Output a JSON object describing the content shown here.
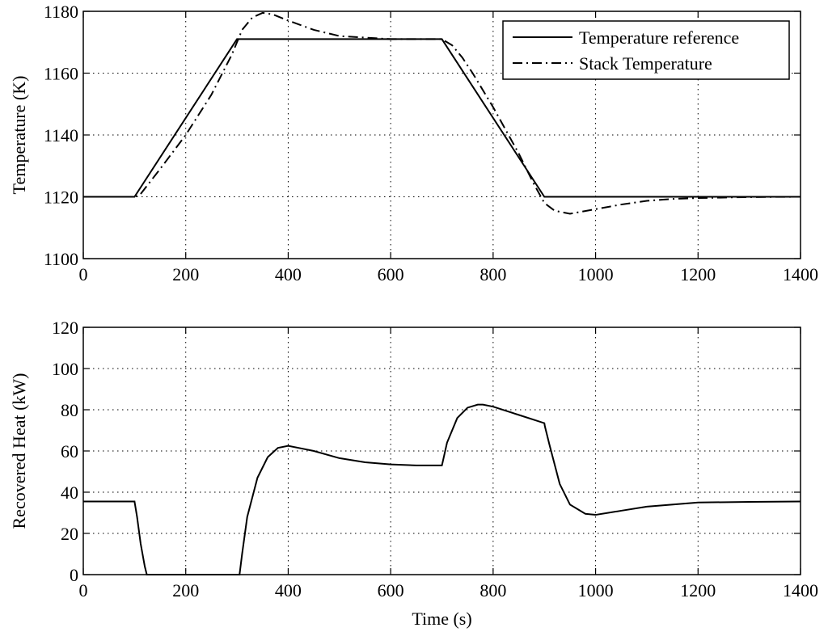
{
  "chart_data": [
    {
      "type": "line",
      "title": "",
      "xlabel": "",
      "ylabel": "Temperature (K)",
      "xlim": [
        0,
        1400
      ],
      "ylim": [
        1100,
        1180
      ],
      "xticks": [
        0,
        200,
        400,
        600,
        800,
        1000,
        1200,
        1400
      ],
      "yticks": [
        1100,
        1120,
        1140,
        1160,
        1180
      ],
      "grid": true,
      "legend_position": "top-right",
      "series": [
        {
          "name": "Temperature reference",
          "style": "solid",
          "x": [
            0,
            100,
            300,
            700,
            900,
            1400
          ],
          "y": [
            1120,
            1120,
            1171,
            1171,
            1120,
            1120
          ]
        },
        {
          "name": "Stack Temperature",
          "style": "dash-dot",
          "x": [
            0,
            100,
            110,
            150,
            200,
            250,
            290,
            310,
            330,
            350,
            370,
            400,
            450,
            500,
            550,
            600,
            650,
            700,
            720,
            740,
            760,
            800,
            850,
            880,
            900,
            920,
            950,
            1000,
            1050,
            1100,
            1150,
            1200,
            1300,
            1400
          ],
          "y": [
            1120,
            1120,
            1120.5,
            1129,
            1140,
            1153,
            1166,
            1174,
            1178,
            1179.5,
            1179,
            1177,
            1174,
            1172,
            1171.5,
            1171,
            1171,
            1171,
            1169,
            1165,
            1160,
            1149,
            1134,
            1124,
            1118,
            1115.5,
            1114.5,
            1116,
            1117.5,
            1118.7,
            1119.3,
            1119.6,
            1119.9,
            1120
          ]
        }
      ]
    },
    {
      "type": "line",
      "title": "",
      "xlabel": "Time (s)",
      "ylabel": "Recovered Heat (kW)",
      "xlim": [
        0,
        1400
      ],
      "ylim": [
        0,
        120
      ],
      "xticks": [
        0,
        200,
        400,
        600,
        800,
        1000,
        1200,
        1400
      ],
      "yticks": [
        0,
        20,
        40,
        60,
        80,
        100,
        120
      ],
      "grid": true,
      "series": [
        {
          "style": "solid",
          "x": [
            0,
            100,
            105,
            112,
            120,
            124,
            305,
            310,
            320,
            340,
            360,
            380,
            400,
            450,
            500,
            550,
            600,
            650,
            700,
            701,
            710,
            730,
            750,
            770,
            780,
            800,
            850,
            900,
            901,
            910,
            930,
            950,
            980,
            1000,
            1050,
            1100,
            1200,
            1300,
            1400
          ],
          "y": [
            35.5,
            35.5,
            28,
            15,
            4,
            0,
            0,
            10,
            28,
            47,
            57,
            61.5,
            62.5,
            60,
            56.5,
            54.5,
            53.5,
            53,
            53,
            54,
            64,
            76,
            81,
            82.5,
            82.5,
            81.5,
            77.5,
            73.5,
            72,
            63,
            44,
            34,
            29.5,
            29,
            31,
            33,
            35,
            35.3,
            35.5
          ]
        }
      ]
    }
  ]
}
